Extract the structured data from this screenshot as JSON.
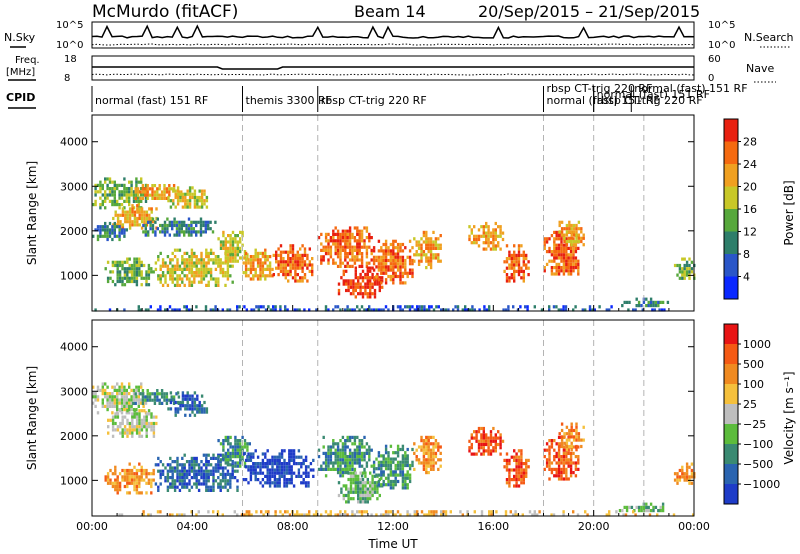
{
  "header": {
    "station": "McMurdo (fitACF)",
    "beam": "Beam 14",
    "dates": "20/Sep/2015 – 21/Sep/2015"
  },
  "strip_labels": {
    "nsky": "N.Sky",
    "nsearch": "N.Search",
    "freq": "Freq.",
    "freq_unit": "[MHz]",
    "nave": "Nave",
    "cpid": "CPID",
    "nsky_ticks": [
      "10^5",
      "10^0"
    ],
    "nsearch_ticks": [
      "10^5",
      "10^0"
    ],
    "freq_ticks": [
      "18",
      "8"
    ],
    "nave_ticks": [
      "60",
      "0"
    ]
  },
  "cpid_modes": [
    {
      "label": "normal (fast) 151 RF",
      "start_h": 0
    },
    {
      "label": "themis 3300 RF",
      "start_h": 6
    },
    {
      "label": "rbsp CT-trig 220 RF",
      "start_h": 9
    },
    {
      "label": "normal (fast) 151 RF",
      "start_h": 18
    },
    {
      "label": "rbsp CT-trig 220 RF",
      "start_h": 18
    },
    {
      "label": "normal (fast) 151 RF",
      "start_h": 20
    },
    {
      "label": "rbsp CT-trig 220 RF",
      "start_h": 20
    },
    {
      "label": "normal (fast) 151 RF",
      "start_h": 21.5
    }
  ],
  "chart_data": [
    {
      "type": "heatmap",
      "title": "",
      "xlabel": "",
      "ylabel": "Slant Range [km]",
      "xlim": [
        0,
        24
      ],
      "ylim": [
        200,
        4600
      ],
      "x_ticks": [
        0,
        4,
        8,
        12,
        16,
        20,
        24
      ],
      "y_ticks": [
        1000,
        2000,
        3000,
        4000
      ],
      "colorbar": {
        "label": "Power [dB]",
        "ticks": [
          "4",
          "8",
          "12",
          "16",
          "20",
          "24",
          "28"
        ],
        "colors": [
          "#0a28ff",
          "#2a56c8",
          "#2e7e6a",
          "#57a83c",
          "#c8c828",
          "#f0a020",
          "#f56a10",
          "#e82010"
        ]
      },
      "regions": [
        {
          "t0": 0.0,
          "t1": 2.2,
          "r0": 2500,
          "r1": 3200,
          "level": 3
        },
        {
          "t0": 0.8,
          "t1": 2.6,
          "r0": 2050,
          "r1": 2600,
          "level": 5
        },
        {
          "t0": 0.0,
          "t1": 1.4,
          "r0": 1800,
          "r1": 2200,
          "level": 2
        },
        {
          "t0": 1.6,
          "t1": 3.6,
          "r0": 2700,
          "r1": 3050,
          "level": 5
        },
        {
          "t0": 3.0,
          "t1": 4.6,
          "r0": 2500,
          "r1": 3000,
          "level": 4
        },
        {
          "t0": 2.0,
          "t1": 5.0,
          "r0": 1900,
          "r1": 2300,
          "level": 2
        },
        {
          "t0": 0.5,
          "t1": 2.5,
          "r0": 800,
          "r1": 1400,
          "level": 3
        },
        {
          "t0": 2.5,
          "t1": 5.6,
          "r0": 750,
          "r1": 1600,
          "level": 4
        },
        {
          "t0": 5.0,
          "t1": 6.2,
          "r0": 1300,
          "r1": 2000,
          "level": 4
        },
        {
          "t0": 6.0,
          "t1": 7.2,
          "r0": 900,
          "r1": 1600,
          "level": 5
        },
        {
          "t0": 7.2,
          "t1": 8.8,
          "r0": 900,
          "r1": 1700,
          "level": 6
        },
        {
          "t0": 9.0,
          "t1": 11.2,
          "r0": 1200,
          "r1": 2100,
          "level": 6
        },
        {
          "t0": 9.8,
          "t1": 11.6,
          "r0": 500,
          "r1": 1200,
          "level": 7
        },
        {
          "t0": 11.2,
          "t1": 12.8,
          "r0": 800,
          "r1": 1800,
          "level": 6
        },
        {
          "t0": 12.8,
          "t1": 13.9,
          "r0": 1200,
          "r1": 2000,
          "level": 5
        },
        {
          "t0": 15.0,
          "t1": 16.4,
          "r0": 1600,
          "r1": 2200,
          "level": 5
        },
        {
          "t0": 16.4,
          "t1": 17.4,
          "r0": 900,
          "r1": 1700,
          "level": 6
        },
        {
          "t0": 18.0,
          "t1": 19.4,
          "r0": 1000,
          "r1": 2000,
          "level": 6
        },
        {
          "t0": 18.6,
          "t1": 19.6,
          "r0": 1700,
          "r1": 2300,
          "level": 5
        },
        {
          "t0": 21.0,
          "t1": 23.0,
          "r0": 300,
          "r1": 500,
          "level": 2
        },
        {
          "t0": 23.2,
          "t1": 24.0,
          "r0": 900,
          "r1": 1400,
          "level": 3
        },
        {
          "t0": 0.0,
          "t1": 24.0,
          "r0": 250,
          "r1": 330,
          "level": 1
        }
      ]
    },
    {
      "type": "heatmap",
      "title": "",
      "xlabel": "Time UT",
      "ylabel": "Slant Range [km]",
      "xlim": [
        0,
        24
      ],
      "ylim": [
        200,
        4600
      ],
      "x_ticks": [
        0,
        4,
        8,
        12,
        16,
        20,
        24
      ],
      "x_tick_labels": [
        "00:00",
        "04:00",
        "08:00",
        "12:00",
        "16:00",
        "20:00",
        "00:00"
      ],
      "y_ticks": [
        1000,
        2000,
        3000,
        4000
      ],
      "colorbar": {
        "label": "Velocity [m s⁻¹]",
        "ticks": [
          "1000",
          "500",
          "100",
          "25",
          "−25",
          "−100",
          "−500",
          "−1000"
        ],
        "colors": [
          "#1e3cc8",
          "#2a64b0",
          "#3a8a72",
          "#5cbc3c",
          "#bebebe",
          "#f5c03c",
          "#f08a20",
          "#f55a14",
          "#e81414"
        ]
      },
      "regions": [
        {
          "t0": 0.0,
          "t1": 2.2,
          "r0": 2500,
          "r1": 3200,
          "level": 4
        },
        {
          "t0": 0.6,
          "t1": 2.6,
          "r0": 2000,
          "r1": 2600,
          "level": 4
        },
        {
          "t0": 1.6,
          "t1": 3.6,
          "r0": 2700,
          "r1": 3050,
          "level": 2
        },
        {
          "t0": 3.0,
          "t1": 4.6,
          "r0": 2450,
          "r1": 3000,
          "level": 1
        },
        {
          "t0": 0.5,
          "t1": 2.5,
          "r0": 750,
          "r1": 1400,
          "level": 6
        },
        {
          "t0": 2.5,
          "t1": 5.8,
          "r0": 750,
          "r1": 1600,
          "level": 1
        },
        {
          "t0": 5.0,
          "t1": 6.3,
          "r0": 1300,
          "r1": 2000,
          "level": 2
        },
        {
          "t0": 6.0,
          "t1": 8.8,
          "r0": 850,
          "r1": 1700,
          "level": 0
        },
        {
          "t0": 9.0,
          "t1": 11.2,
          "r0": 1100,
          "r1": 2000,
          "level": 2
        },
        {
          "t0": 9.8,
          "t1": 11.6,
          "r0": 500,
          "r1": 1200,
          "level": 3
        },
        {
          "t0": 11.2,
          "t1": 12.8,
          "r0": 800,
          "r1": 1800,
          "level": 2
        },
        {
          "t0": 12.8,
          "t1": 13.9,
          "r0": 1200,
          "r1": 2000,
          "level": 6
        },
        {
          "t0": 15.0,
          "t1": 16.4,
          "r0": 1600,
          "r1": 2200,
          "level": 7
        },
        {
          "t0": 16.4,
          "t1": 17.4,
          "r0": 900,
          "r1": 1700,
          "level": 7
        },
        {
          "t0": 18.0,
          "t1": 19.4,
          "r0": 1000,
          "r1": 2000,
          "level": 7
        },
        {
          "t0": 18.6,
          "t1": 19.6,
          "r0": 1700,
          "r1": 2300,
          "level": 6
        },
        {
          "t0": 21.0,
          "t1": 23.0,
          "r0": 300,
          "r1": 500,
          "level": 3
        },
        {
          "t0": 23.2,
          "t1": 24.0,
          "r0": 900,
          "r1": 1400,
          "level": 6
        },
        {
          "t0": 0.0,
          "t1": 24.0,
          "r0": 250,
          "r1": 330,
          "level": 5
        }
      ]
    }
  ],
  "mode_change_hours": [
    6,
    9,
    18,
    20,
    22
  ]
}
